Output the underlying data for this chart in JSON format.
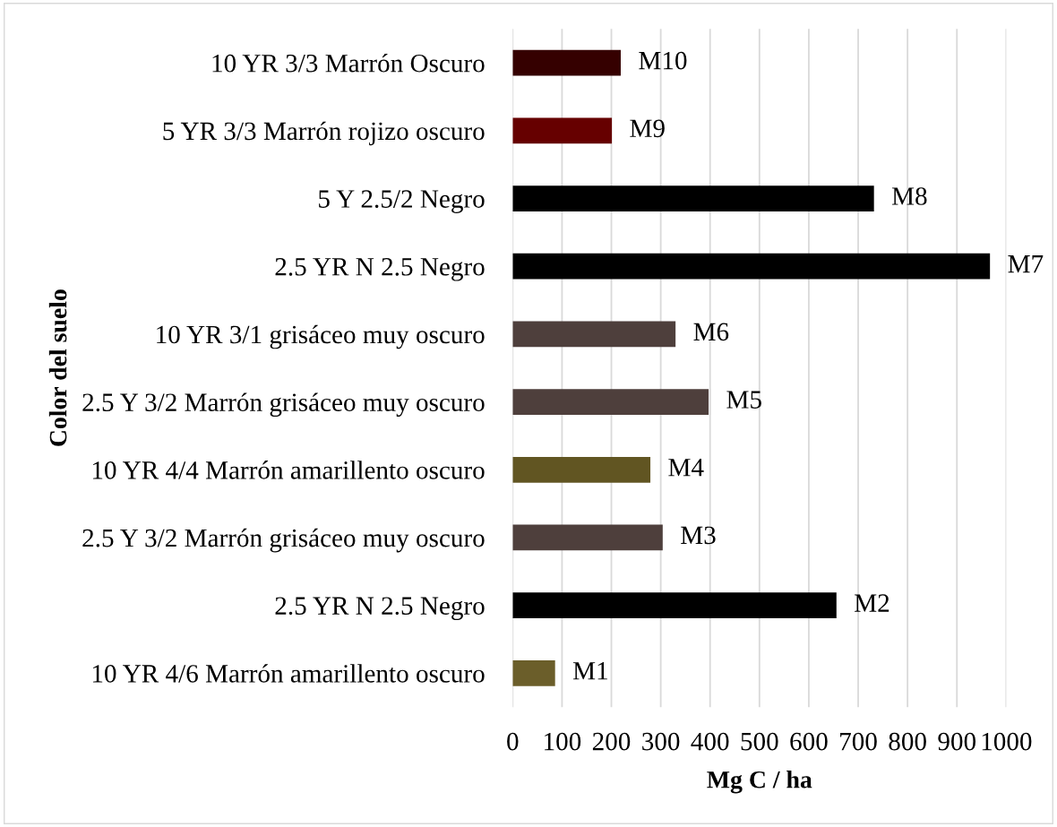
{
  "chart_data": {
    "type": "bar",
    "orientation": "horizontal",
    "xlabel": "Mg C / ha",
    "ylabel": "Color del suelo",
    "categories": [
      "10 YR 3/3 Marrón Oscuro",
      "5 YR 3/3 Marrón rojizo oscuro",
      "5 Y 2.5/2 Negro",
      "2.5 YR N 2.5 Negro",
      "10 YR 3/1 grisáceo muy oscuro",
      "2.5 Y 3/2 Marrón grisáceo muy oscuro",
      "10 YR 4/4 Marrón amarillento oscuro",
      "2.5 Y 3/2 Marrón grisáceo muy oscuro",
      "2.5 YR N 2.5 Negro",
      "10 YR 4/6 Marrón amarillento oscuro"
    ],
    "values": [
      219,
      201,
      732,
      967,
      330,
      397,
      279,
      304,
      656,
      86
    ],
    "colors": [
      "#350000",
      "#660000",
      "#000000",
      "#000000",
      "#4e3f3c",
      "#4e3f3c",
      "#615522",
      "#4e3f3c",
      "#000000",
      "#6b5e2a"
    ],
    "value_labels": [
      "M10",
      "M9",
      "M8",
      "M7",
      "M6",
      "M5",
      "M4",
      "M3",
      "M2",
      "M1"
    ],
    "xlim": [
      0,
      1000
    ],
    "xticks": [
      0,
      100,
      200,
      300,
      400,
      500,
      600,
      700,
      800,
      900,
      1000
    ],
    "grid": "x"
  }
}
